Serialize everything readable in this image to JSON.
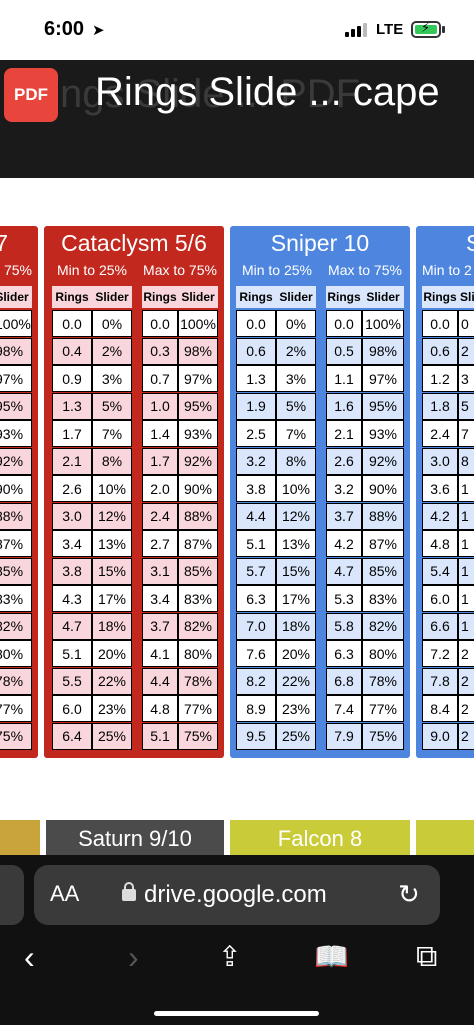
{
  "status": {
    "time": "6:00",
    "network": "LTE"
  },
  "header": {
    "badge": "PDF",
    "title": "Rings Slide ... cape",
    "ghost": "ngs Slide ... PDF"
  },
  "tables": {
    "left_partial": {
      "title": "7",
      "sub": "o 75%",
      "col": "Slider",
      "values": [
        "100%",
        "98%",
        "97%",
        "95%",
        "93%",
        "92%",
        "90%",
        "88%",
        "87%",
        "85%",
        "83%",
        "82%",
        "80%",
        "78%",
        "77%",
        "75%"
      ]
    },
    "cataclysm": {
      "title": "Cataclysm 5/6",
      "min_label": "Min to 25%",
      "max_label": "Max to 75%",
      "col_rings": "Rings",
      "col_slider": "Slider",
      "min_rings": [
        "0.0",
        "0.4",
        "0.9",
        "1.3",
        "1.7",
        "2.1",
        "2.6",
        "3.0",
        "3.4",
        "3.8",
        "4.3",
        "4.7",
        "5.1",
        "5.5",
        "6.0",
        "6.4"
      ],
      "min_slider": [
        "0%",
        "2%",
        "3%",
        "5%",
        "7%",
        "8%",
        "10%",
        "12%",
        "13%",
        "15%",
        "17%",
        "18%",
        "20%",
        "22%",
        "23%",
        "25%"
      ],
      "max_rings": [
        "0.0",
        "0.3",
        "0.7",
        "1.0",
        "1.4",
        "1.7",
        "2.0",
        "2.4",
        "2.7",
        "3.1",
        "3.4",
        "3.7",
        "4.1",
        "4.4",
        "4.8",
        "5.1"
      ],
      "max_slider": [
        "100%",
        "98%",
        "97%",
        "95%",
        "93%",
        "92%",
        "90%",
        "88%",
        "87%",
        "85%",
        "83%",
        "82%",
        "80%",
        "78%",
        "77%",
        "75%"
      ]
    },
    "sniper": {
      "title": "Sniper 10",
      "min_label": "Min to 25%",
      "max_label": "Max to 75%",
      "col_rings": "Rings",
      "col_slider": "Slider",
      "min_rings": [
        "0.0",
        "0.6",
        "1.3",
        "1.9",
        "2.5",
        "3.2",
        "3.8",
        "4.4",
        "5.1",
        "5.7",
        "6.3",
        "7.0",
        "7.6",
        "8.2",
        "8.9",
        "9.5"
      ],
      "min_slider": [
        "0%",
        "2%",
        "3%",
        "5%",
        "7%",
        "8%",
        "10%",
        "12%",
        "13%",
        "15%",
        "17%",
        "18%",
        "20%",
        "22%",
        "23%",
        "25%"
      ],
      "max_rings": [
        "0.0",
        "0.5",
        "1.1",
        "1.6",
        "2.1",
        "2.6",
        "3.2",
        "3.7",
        "4.2",
        "4.7",
        "5.3",
        "5.8",
        "6.3",
        "6.8",
        "7.4",
        "7.9"
      ],
      "max_slider": [
        "100%",
        "98%",
        "97%",
        "95%",
        "93%",
        "92%",
        "90%",
        "88%",
        "87%",
        "85%",
        "83%",
        "82%",
        "80%",
        "78%",
        "77%",
        "75%"
      ]
    },
    "right_partial": {
      "title": "S",
      "sub": "Min to 2",
      "col_rings": "Rings",
      "col_slider": "Sli",
      "rings": [
        "0.0",
        "0.6",
        "1.2",
        "1.8",
        "2.4",
        "3.0",
        "3.6",
        "4.2",
        "4.8",
        "5.4",
        "6.0",
        "6.6",
        "7.2",
        "7.8",
        "8.4",
        "9.0"
      ],
      "slider": [
        "0",
        "2",
        "3",
        "5",
        "7",
        "8",
        "1",
        "1",
        "1",
        "1",
        "1",
        "1",
        "2",
        "2",
        "2",
        "2"
      ]
    }
  },
  "bottom_cards": {
    "saturn": "Saturn 9/10",
    "falcon": "Falcon 8"
  },
  "browser": {
    "text_size": "AA",
    "url": "drive.google.com"
  },
  "colors": {
    "red": "#c3281f",
    "red_light": "#f9d6dc",
    "blue": "#4e86df",
    "blue_light": "#d9e6fb",
    "yellow": "#c9cc38",
    "orange": "#c9a43a",
    "gray": "#4b4b4b"
  }
}
